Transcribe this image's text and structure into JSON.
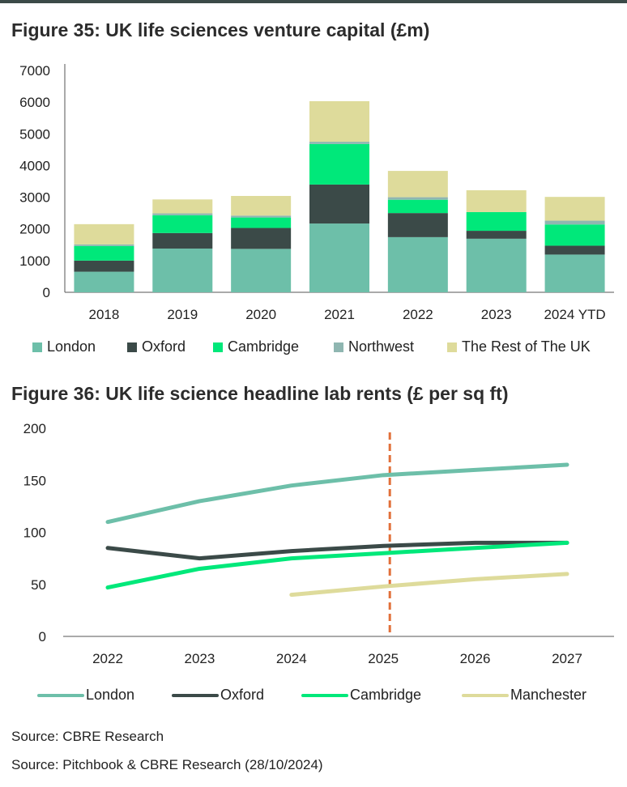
{
  "figure1": {
    "title": "Figure 35: UK life sciences venture capital (£m)",
    "chart_data": {
      "type": "bar",
      "stacked": true,
      "title": "Figure 35: UK life sciences venture capital (£m)",
      "categories": [
        "2018",
        "2019",
        "2020",
        "2021",
        "2022",
        "2023",
        "2024 YTD"
      ],
      "ylim": [
        0,
        7000
      ],
      "yticks": [
        0,
        1000,
        2000,
        3000,
        4000,
        5000,
        6000,
        7000
      ],
      "grid": false,
      "legend": "bottom",
      "series": [
        {
          "name": "London",
          "color": "#6dbfa9",
          "values": [
            650,
            1380,
            1370,
            2170,
            1740,
            1690,
            1190
          ]
        },
        {
          "name": "Oxford",
          "color": "#3b4a48",
          "values": [
            350,
            490,
            660,
            1230,
            760,
            250,
            280
          ]
        },
        {
          "name": "Cambridge",
          "color": "#00e87a",
          "values": [
            460,
            560,
            330,
            1280,
            420,
            590,
            670
          ]
        },
        {
          "name": "Northwest",
          "color": "#8fb6b1",
          "values": [
            50,
            60,
            60,
            70,
            80,
            0,
            120
          ]
        },
        {
          "name": "The Rest of The UK",
          "color": "#dedb9b",
          "values": [
            640,
            440,
            620,
            1280,
            830,
            690,
            750
          ]
        }
      ]
    }
  },
  "figure2": {
    "title": "Figure 36: UK life science headline lab rents (£ per sq ft)",
    "chart_data": {
      "type": "line",
      "title": "Figure 36: UK life science headline lab rents (£ per sq ft)",
      "x": [
        "2022",
        "2023",
        "2024",
        "2025",
        "2026",
        "2027"
      ],
      "ylim": [
        0,
        200
      ],
      "yticks": [
        0,
        50,
        100,
        150,
        200
      ],
      "grid": false,
      "legend": "bottom",
      "forecast_marker_x": "2025",
      "forecast_marker_color": "#e2703a",
      "series": [
        {
          "name": "London",
          "color": "#6dbfa9",
          "values": [
            110,
            130,
            145,
            155,
            160,
            165
          ]
        },
        {
          "name": "Oxford",
          "color": "#3b4a48",
          "values": [
            85,
            75,
            82,
            87,
            90,
            90
          ]
        },
        {
          "name": "Cambridge",
          "color": "#00e87a",
          "values": [
            47,
            65,
            75,
            80,
            85,
            90
          ]
        },
        {
          "name": "Manchester",
          "color": "#dedb9b",
          "values": [
            null,
            null,
            40,
            48,
            55,
            60
          ]
        }
      ]
    }
  },
  "sources": [
    "Source: CBRE Research",
    "Source: Pitchbook & CBRE Research (28/10/2024)"
  ]
}
